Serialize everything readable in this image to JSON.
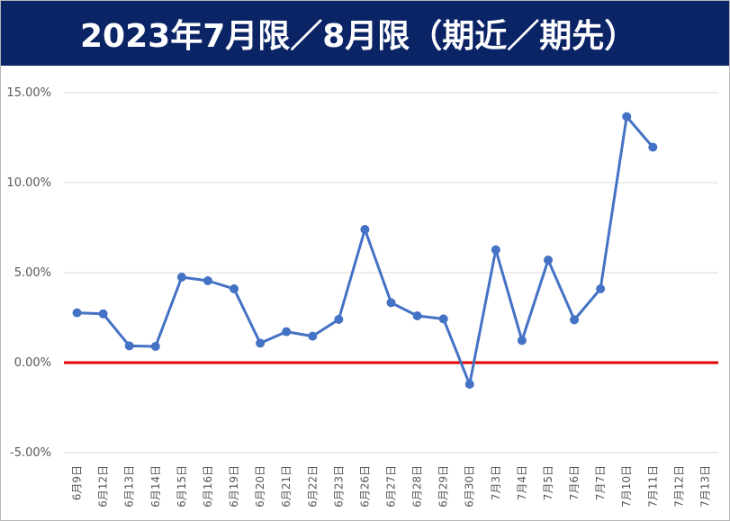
{
  "chart_data": {
    "type": "line",
    "title": "2023年7月限／8月限（期近／期先）",
    "xlabel": "",
    "ylabel": "",
    "ylim": [
      -0.05,
      0.15
    ],
    "yticks": [
      -0.05,
      0,
      0.05,
      0.1,
      0.15
    ],
    "ytick_labels": [
      "-5.00%",
      "0.00%",
      "5.00%",
      "10.00%",
      "15.00%"
    ],
    "grid": true,
    "legend": "none",
    "categories": [
      "6月9日",
      "6月12日",
      "6月13日",
      "6月14日",
      "6月15日",
      "6月16日",
      "6月19日",
      "6月20日",
      "6月21日",
      "6月22日",
      "6月23日",
      "6月26日",
      "6月27日",
      "6月28日",
      "6月29日",
      "6月30日",
      "7月3日",
      "7月4日",
      "7月5日",
      "7月6日",
      "7月7日",
      "7月10日",
      "7月11日",
      "7月12日",
      "7月13日"
    ],
    "series": [
      {
        "name": "",
        "color": "#4472c4",
        "values": [
          0.0277,
          0.0271,
          0.0093,
          0.009,
          0.0475,
          0.0455,
          0.041,
          0.0108,
          0.0172,
          0.0147,
          0.024,
          0.074,
          0.0333,
          0.026,
          0.0243,
          -0.012,
          0.0627,
          0.0123,
          0.057,
          0.0238,
          0.041,
          0.1367,
          0.1197,
          null,
          null
        ]
      }
    ],
    "baseline": {
      "value": 0,
      "color": "#e00000"
    }
  }
}
